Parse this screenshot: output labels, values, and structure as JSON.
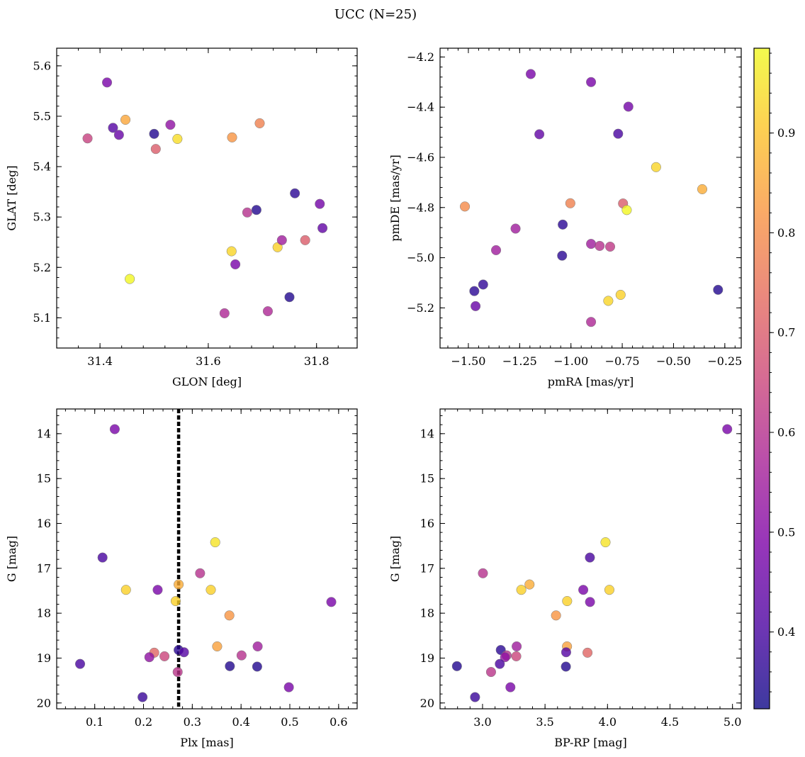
{
  "title": "UCC (N=25)",
  "colormap": "plasma",
  "chart_data": [
    {
      "id": "glon-glat",
      "type": "scatter",
      "xlabel": "GLON [deg]",
      "ylabel": "GLAT [deg]",
      "xlim": [
        31.32,
        31.875
      ],
      "ylim": [
        5.04,
        5.635
      ],
      "xticks": [
        31.4,
        31.6,
        31.8
      ],
      "yticks": [
        5.1,
        5.2,
        5.3,
        5.4,
        5.5,
        5.6
      ],
      "xtick_labels": [
        "31.4",
        "31.6",
        "31.8"
      ],
      "ytick_labels": [
        "5.1",
        "5.2",
        "5.3",
        "5.4",
        "5.5",
        "5.6"
      ],
      "invert_y": false,
      "points": [
        {
          "x": 31.413,
          "y": 5.567,
          "c": 0.48
        },
        {
          "x": 31.377,
          "y": 5.456,
          "c": 0.64
        },
        {
          "x": 31.424,
          "y": 5.477,
          "c": 0.42
        },
        {
          "x": 31.435,
          "y": 5.463,
          "c": 0.45
        },
        {
          "x": 31.447,
          "y": 5.493,
          "c": 0.85
        },
        {
          "x": 31.5,
          "y": 5.465,
          "c": 0.35
        },
        {
          "x": 31.503,
          "y": 5.435,
          "c": 0.7
        },
        {
          "x": 31.53,
          "y": 5.483,
          "c": 0.52
        },
        {
          "x": 31.543,
          "y": 5.455,
          "c": 0.94
        },
        {
          "x": 31.644,
          "y": 5.458,
          "c": 0.82
        },
        {
          "x": 31.695,
          "y": 5.486,
          "c": 0.78
        },
        {
          "x": 31.455,
          "y": 5.177,
          "c": 0.98
        },
        {
          "x": 31.63,
          "y": 5.109,
          "c": 0.58
        },
        {
          "x": 31.643,
          "y": 5.232,
          "c": 0.93
        },
        {
          "x": 31.65,
          "y": 5.206,
          "c": 0.48
        },
        {
          "x": 31.672,
          "y": 5.309,
          "c": 0.6
        },
        {
          "x": 31.689,
          "y": 5.314,
          "c": 0.35
        },
        {
          "x": 31.71,
          "y": 5.113,
          "c": 0.58
        },
        {
          "x": 31.728,
          "y": 5.24,
          "c": 0.92
        },
        {
          "x": 31.736,
          "y": 5.254,
          "c": 0.55
        },
        {
          "x": 31.75,
          "y": 5.141,
          "c": 0.35
        },
        {
          "x": 31.76,
          "y": 5.347,
          "c": 0.36
        },
        {
          "x": 31.779,
          "y": 5.254,
          "c": 0.7
        },
        {
          "x": 31.806,
          "y": 5.326,
          "c": 0.47
        },
        {
          "x": 31.811,
          "y": 5.278,
          "c": 0.44
        }
      ]
    },
    {
      "id": "pm",
      "type": "scatter",
      "xlabel": "pmRA [mas/yr]",
      "ylabel": "pmDE [mas/yr]",
      "xlim": [
        -1.638,
        -0.17
      ],
      "ylim": [
        -5.36,
        -4.165
      ],
      "xticks": [
        -1.5,
        -1.25,
        -1.0,
        -0.75,
        -0.5,
        -0.25
      ],
      "yticks": [
        -5.2,
        -5.0,
        -4.8,
        -4.6,
        -4.4,
        -4.2
      ],
      "xtick_labels": [
        "−1.50",
        "−1.25",
        "−1.00",
        "−0.75",
        "−0.50",
        "−0.25"
      ],
      "ytick_labels": [
        "−5.2",
        "−5.0",
        "−4.8",
        "−4.6",
        "−4.4",
        "−4.2"
      ],
      "invert_y": false,
      "points": [
        {
          "x": -1.196,
          "y": -4.268,
          "c": 0.48
        },
        {
          "x": -0.902,
          "y": -4.3,
          "c": 0.48
        },
        {
          "x": -0.72,
          "y": -4.398,
          "c": 0.47
        },
        {
          "x": -1.154,
          "y": -4.508,
          "c": 0.44
        },
        {
          "x": -0.77,
          "y": -4.506,
          "c": 0.4
        },
        {
          "x": -0.585,
          "y": -4.639,
          "c": 0.93
        },
        {
          "x": -0.36,
          "y": -4.727,
          "c": 0.86
        },
        {
          "x": -1.517,
          "y": -4.796,
          "c": 0.8
        },
        {
          "x": -1.003,
          "y": -4.783,
          "c": 0.78
        },
        {
          "x": -0.746,
          "y": -4.784,
          "c": 0.7
        },
        {
          "x": -0.728,
          "y": -4.81,
          "c": 0.98
        },
        {
          "x": -1.27,
          "y": -4.884,
          "c": 0.55
        },
        {
          "x": -1.04,
          "y": -4.868,
          "c": 0.36
        },
        {
          "x": -1.365,
          "y": -4.97,
          "c": 0.55
        },
        {
          "x": -0.902,
          "y": -4.945,
          "c": 0.55
        },
        {
          "x": -0.86,
          "y": -4.953,
          "c": 0.6
        },
        {
          "x": -0.809,
          "y": -4.956,
          "c": 0.62
        },
        {
          "x": -1.043,
          "y": -4.992,
          "c": 0.36
        },
        {
          "x": -1.428,
          "y": -5.107,
          "c": 0.37
        },
        {
          "x": -1.471,
          "y": -5.133,
          "c": 0.36
        },
        {
          "x": -0.283,
          "y": -5.128,
          "c": 0.35
        },
        {
          "x": -0.758,
          "y": -5.148,
          "c": 0.92
        },
        {
          "x": -0.818,
          "y": -5.172,
          "c": 0.93
        },
        {
          "x": -1.465,
          "y": -5.193,
          "c": 0.45
        },
        {
          "x": -0.902,
          "y": -5.256,
          "c": 0.58
        }
      ]
    },
    {
      "id": "plx-g",
      "type": "scatter",
      "xlabel": "Plx [mas]",
      "ylabel": "G [mag]",
      "xlim": [
        0.022,
        0.638
      ],
      "ylim": [
        13.45,
        20.13
      ],
      "xticks": [
        0.1,
        0.2,
        0.3,
        0.4,
        0.5,
        0.6
      ],
      "yticks": [
        14,
        15,
        16,
        17,
        18,
        19,
        20
      ],
      "xtick_labels": [
        "0.1",
        "0.2",
        "0.3",
        "0.4",
        "0.5",
        "0.6"
      ],
      "ytick_labels": [
        "14",
        "15",
        "16",
        "17",
        "18",
        "19",
        "20"
      ],
      "invert_y": true,
      "vline": 0.272,
      "points": [
        {
          "x": 0.141,
          "y": 13.9,
          "c": 0.48
        },
        {
          "x": 0.347,
          "y": 16.42,
          "c": 0.95
        },
        {
          "x": 0.116,
          "y": 16.76,
          "c": 0.4
        },
        {
          "x": 0.316,
          "y": 17.11,
          "c": 0.6
        },
        {
          "x": 0.272,
          "y": 17.36,
          "c": 0.86
        },
        {
          "x": 0.164,
          "y": 17.48,
          "c": 0.92
        },
        {
          "x": 0.229,
          "y": 17.48,
          "c": 0.48
        },
        {
          "x": 0.338,
          "y": 17.48,
          "c": 0.92
        },
        {
          "x": 0.266,
          "y": 17.73,
          "c": 0.92
        },
        {
          "x": 0.585,
          "y": 17.75,
          "c": 0.48
        },
        {
          "x": 0.376,
          "y": 18.05,
          "c": 0.82
        },
        {
          "x": 0.351,
          "y": 18.74,
          "c": 0.84
        },
        {
          "x": 0.434,
          "y": 18.74,
          "c": 0.55
        },
        {
          "x": 0.272,
          "y": 18.82,
          "c": 0.36
        },
        {
          "x": 0.283,
          "y": 18.87,
          "c": 0.42
        },
        {
          "x": 0.222,
          "y": 18.88,
          "c": 0.72
        },
        {
          "x": 0.401,
          "y": 18.94,
          "c": 0.6
        },
        {
          "x": 0.243,
          "y": 18.96,
          "c": 0.65
        },
        {
          "x": 0.212,
          "y": 18.98,
          "c": 0.52
        },
        {
          "x": 0.07,
          "y": 19.13,
          "c": 0.4
        },
        {
          "x": 0.377,
          "y": 19.18,
          "c": 0.35
        },
        {
          "x": 0.433,
          "y": 19.19,
          "c": 0.35
        },
        {
          "x": 0.27,
          "y": 19.31,
          "c": 0.61
        },
        {
          "x": 0.498,
          "y": 19.65,
          "c": 0.48
        },
        {
          "x": 0.198,
          "y": 19.87,
          "c": 0.38
        }
      ]
    },
    {
      "id": "bprp-g",
      "type": "scatter",
      "xlabel": "BP-RP [mag]",
      "ylabel": "G [mag]",
      "xlim": [
        2.66,
        5.07
      ],
      "ylim": [
        13.45,
        20.13
      ],
      "xticks": [
        3.0,
        3.5,
        4.0,
        4.5,
        5.0
      ],
      "yticks": [
        14,
        15,
        16,
        17,
        18,
        19,
        20
      ],
      "xtick_labels": [
        "3.0",
        "3.5",
        "4.0",
        "4.5",
        "5.0"
      ],
      "ytick_labels": [
        "14",
        "15",
        "16",
        "17",
        "18",
        "19",
        "20"
      ],
      "invert_y": true,
      "points": [
        {
          "x": 4.958,
          "y": 13.9,
          "c": 0.48
        },
        {
          "x": 3.984,
          "y": 16.42,
          "c": 0.95
        },
        {
          "x": 3.859,
          "y": 16.76,
          "c": 0.4
        },
        {
          "x": 3.003,
          "y": 17.11,
          "c": 0.6
        },
        {
          "x": 3.376,
          "y": 17.36,
          "c": 0.86
        },
        {
          "x": 3.31,
          "y": 17.48,
          "c": 0.92
        },
        {
          "x": 3.806,
          "y": 17.48,
          "c": 0.48
        },
        {
          "x": 4.015,
          "y": 17.48,
          "c": 0.92
        },
        {
          "x": 3.677,
          "y": 17.73,
          "c": 0.92
        },
        {
          "x": 3.86,
          "y": 17.75,
          "c": 0.48
        },
        {
          "x": 3.588,
          "y": 18.05,
          "c": 0.82
        },
        {
          "x": 3.676,
          "y": 18.74,
          "c": 0.84
        },
        {
          "x": 3.273,
          "y": 18.74,
          "c": 0.55
        },
        {
          "x": 3.146,
          "y": 18.82,
          "c": 0.36
        },
        {
          "x": 3.669,
          "y": 18.87,
          "c": 0.42
        },
        {
          "x": 3.84,
          "y": 18.88,
          "c": 0.72
        },
        {
          "x": 3.193,
          "y": 18.94,
          "c": 0.6
        },
        {
          "x": 3.27,
          "y": 18.96,
          "c": 0.65
        },
        {
          "x": 3.18,
          "y": 18.98,
          "c": 0.52
        },
        {
          "x": 3.138,
          "y": 19.13,
          "c": 0.4
        },
        {
          "x": 2.795,
          "y": 19.18,
          "c": 0.35
        },
        {
          "x": 3.667,
          "y": 19.19,
          "c": 0.35
        },
        {
          "x": 3.068,
          "y": 19.31,
          "c": 0.61
        },
        {
          "x": 3.223,
          "y": 19.65,
          "c": 0.48
        },
        {
          "x": 2.94,
          "y": 19.87,
          "c": 0.38
        }
      ]
    }
  ],
  "colorbar": {
    "vmin": 0.323,
    "vmax": 0.985,
    "ticks": [
      0.4,
      0.5,
      0.6,
      0.7,
      0.8,
      0.9
    ],
    "tick_labels": [
      "0.4",
      "0.5",
      "0.6",
      "0.7",
      "0.8",
      "0.9"
    ]
  }
}
